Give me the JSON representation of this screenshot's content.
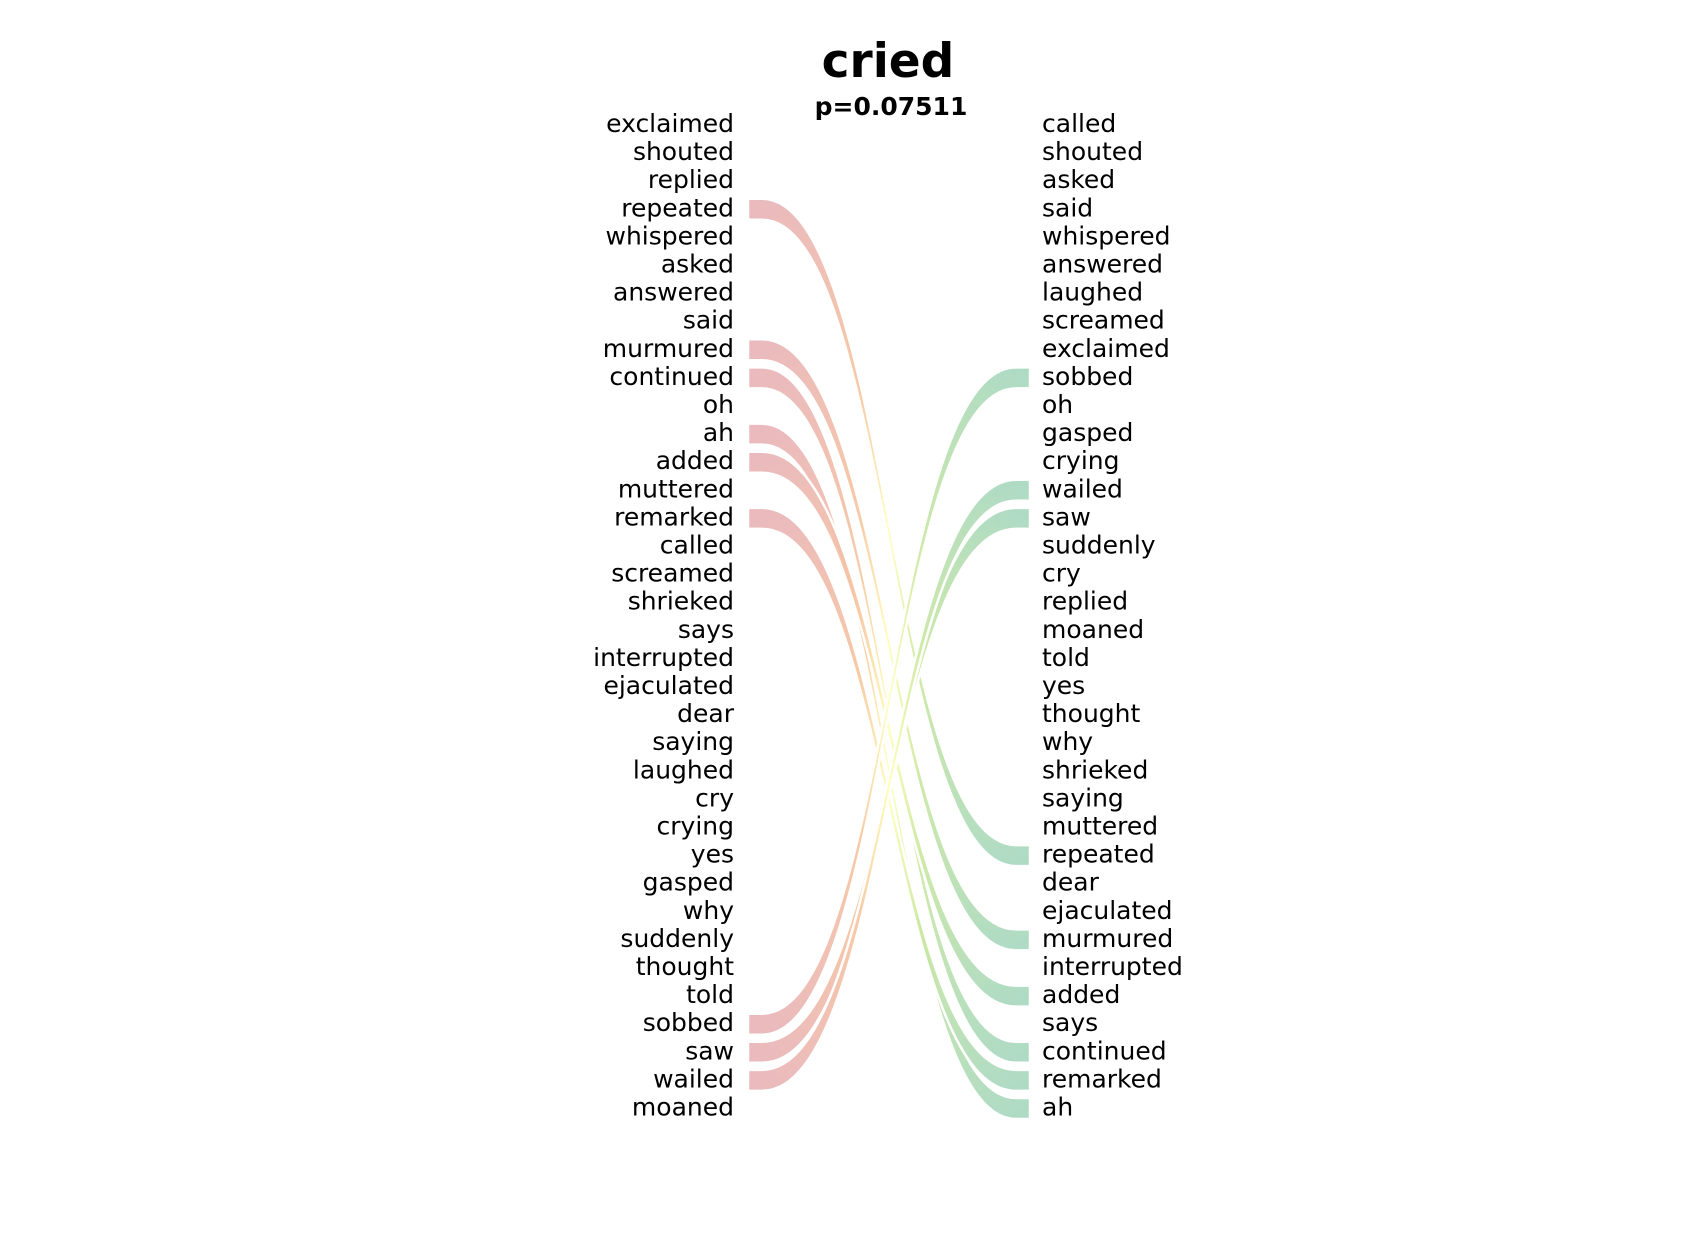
{
  "chart_data": {
    "type": "slope",
    "title": "cried",
    "subtitle": "p=0.07511",
    "left_words": [
      "exclaimed",
      "shouted",
      "replied",
      "repeated",
      "whispered",
      "asked",
      "answered",
      "said",
      "murmured",
      "continued",
      "oh",
      "ah",
      "added",
      "muttered",
      "remarked",
      "called",
      "screamed",
      "shrieked",
      "says",
      "interrupted",
      "ejaculated",
      "dear",
      "saying",
      "laughed",
      "cry",
      "crying",
      "yes",
      "gasped",
      "why",
      "suddenly",
      "thought",
      "told",
      "sobbed",
      "saw",
      "wailed",
      "moaned"
    ],
    "right_words": [
      "called",
      "shouted",
      "asked",
      "said",
      "whispered",
      "answered",
      "laughed",
      "screamed",
      "exclaimed",
      "sobbed",
      "oh",
      "gasped",
      "crying",
      "wailed",
      "saw",
      "suddenly",
      "cry",
      "replied",
      "moaned",
      "told",
      "yes",
      "thought",
      "why",
      "shrieked",
      "saying",
      "muttered",
      "repeated",
      "dear",
      "ejaculated",
      "murmured",
      "interrupted",
      "added",
      "says",
      "continued",
      "remarked",
      "ah"
    ],
    "links": [
      {
        "word": "repeated",
        "left_rank": 4,
        "right_rank": 27
      },
      {
        "word": "murmured",
        "left_rank": 9,
        "right_rank": 30
      },
      {
        "word": "continued",
        "left_rank": 10,
        "right_rank": 34
      },
      {
        "word": "ah",
        "left_rank": 12,
        "right_rank": 36
      },
      {
        "word": "added",
        "left_rank": 13,
        "right_rank": 32
      },
      {
        "word": "remarked",
        "left_rank": 15,
        "right_rank": 35
      },
      {
        "word": "sobbed",
        "left_rank": 33,
        "right_rank": 10
      },
      {
        "word": "saw",
        "left_rank": 34,
        "right_rank": 15
      },
      {
        "word": "wailed",
        "left_rank": 35,
        "right_rank": 14
      }
    ],
    "colors": {
      "left_end": "#e8b4b8",
      "right_end": "#a8d8c0",
      "mid_warm": "#f7c59f",
      "mid_light": "#ffffb8",
      "mid_green": "#cce8a0"
    }
  }
}
